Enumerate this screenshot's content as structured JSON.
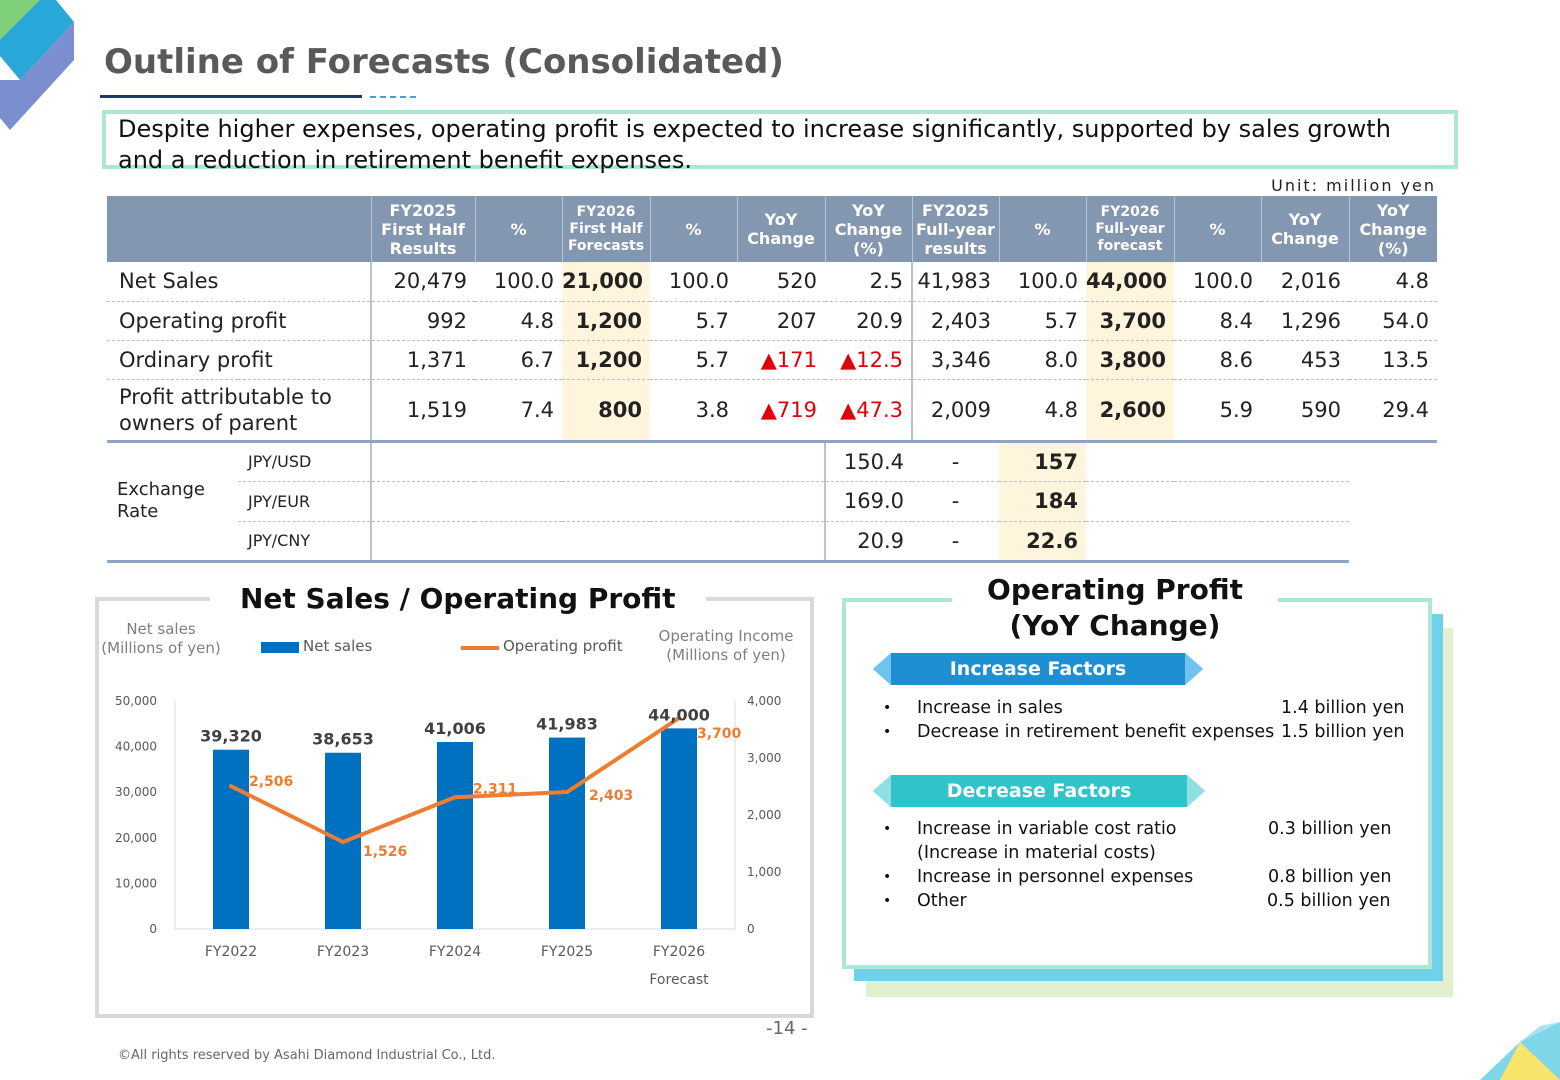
{
  "title": "Outline of Forecasts (Consolidated)",
  "summary": "Despite higher expenses, operating profit is expected to increase significantly, supported by sales growth and a reduction in retirement benefit expenses.",
  "unit": "Unit: million yen",
  "table": {
    "headers": [
      "FY2025 First Half Results",
      "%",
      "FY2026 First Half Forecasts",
      "%",
      "YoY Change",
      "YoY Change (%)",
      "FY2025 Full-year results",
      "%",
      "FY2026 Full-year forecast",
      "%",
      "YoY Change",
      "YoY Change (%)"
    ],
    "header_lines": [
      [
        "FY2025",
        "First Half",
        "Results"
      ],
      [
        "%"
      ],
      [
        "FY2026",
        "First Half",
        "Forecasts"
      ],
      [
        "%"
      ],
      [
        "YoY",
        "Change"
      ],
      [
        "YoY",
        "Change",
        "(%)"
      ],
      [
        "FY2025",
        "Full-year",
        "results"
      ],
      [
        "%"
      ],
      [
        "FY2026",
        "Full-year",
        "forecast"
      ],
      [
        "%"
      ],
      [
        "YoY",
        "Change"
      ],
      [
        "YoY",
        "Change",
        "(%)"
      ]
    ],
    "rows": [
      {
        "label": "Net Sales",
        "cells": [
          "20,479",
          "100.0",
          "21,000",
          "100.0",
          "520",
          "2.5",
          "41,983",
          "100.0",
          "44,000",
          "100.0",
          "2,016",
          "4.8"
        ]
      },
      {
        "label": "Operating profit",
        "cells": [
          "992",
          "4.8",
          "1,200",
          "5.7",
          "207",
          "20.9",
          "2,403",
          "5.7",
          "3,700",
          "8.4",
          "1,296",
          "54.0"
        ]
      },
      {
        "label": "Ordinary profit",
        "cells": [
          "1,371",
          "6.7",
          "1,200",
          "5.7",
          "▲171",
          "▲12.5",
          "3,346",
          "8.0",
          "3,800",
          "8.6",
          "453",
          "13.5"
        ]
      },
      {
        "label_lines": [
          "Profit attributable to",
          "owners of parent"
        ],
        "cells": [
          "1,519",
          "7.4",
          "800",
          "3.8",
          "▲719",
          "▲47.3",
          "2,009",
          "4.8",
          "2,600",
          "5.9",
          "590",
          "29.4"
        ]
      }
    ],
    "exchange": {
      "label_lines": [
        "Exchange",
        "Rate"
      ],
      "rows": [
        {
          "pair": "JPY/USD",
          "fy2025": "150.4",
          "pct": "-",
          "fy2026": "157"
        },
        {
          "pair": "JPY/EUR",
          "fy2025": "169.0",
          "pct": "-",
          "fy2026": "184"
        },
        {
          "pair": "JPY/CNY",
          "fy2025": "20.9",
          "pct": "-",
          "fy2026": "22.6"
        }
      ]
    }
  },
  "chart_data": {
    "type": "bar",
    "title": "Net Sales / Operating Profit",
    "categories": [
      "FY2022",
      "FY2023",
      "FY2024",
      "FY2025",
      "FY2026"
    ],
    "category_sublabels": [
      "",
      "",
      "",
      "",
      "Forecast"
    ],
    "series": [
      {
        "name": "Net sales",
        "type": "bar",
        "axis": "left",
        "color": "#0070c0",
        "values": [
          39320,
          38653,
          41006,
          41983,
          44000
        ],
        "labels": [
          "39,320",
          "38,653",
          "41,006",
          "41,983",
          "44,000"
        ]
      },
      {
        "name": "Operating profit",
        "type": "line",
        "axis": "right",
        "color": "#ed7d31",
        "values": [
          2506,
          1526,
          2311,
          2403,
          3700
        ],
        "labels": [
          "2,506",
          "1,526",
          "2,311",
          "2,403",
          "3,700"
        ]
      }
    ],
    "ylabel_left_lines": [
      "Net sales",
      "(Millions of yen)"
    ],
    "ylabel_right_lines": [
      "Operating Income",
      "(Millions of yen)"
    ],
    "ylim_left": [
      0,
      50000
    ],
    "ylim_right": [
      0,
      4000
    ],
    "yticks_left": [
      "0",
      "10,000",
      "20,000",
      "30,000",
      "40,000",
      "50,000"
    ],
    "yticks_right": [
      "0",
      "1,000",
      "2,000",
      "3,000",
      "4,000"
    ],
    "legend": "top",
    "grid": false
  },
  "op_profit": {
    "title_lines": [
      "Operating Profit",
      "(YoY Change)"
    ],
    "increase_label": "Increase Factors",
    "increase": [
      {
        "text": "Increase in sales",
        "amount": "1.4 billion yen"
      },
      {
        "text": "Decrease in retirement benefit expenses",
        "amount": "1.5 billion yen"
      }
    ],
    "decrease_label": "Decrease Factors",
    "decrease": [
      {
        "text": "Increase in variable cost ratio",
        "note": "(Increase in material costs)",
        "amount": "0.3 billion yen"
      },
      {
        "text": "Increase in personnel expenses",
        "amount": "0.8 billion yen"
      },
      {
        "text": "Other",
        "amount": "0.5 billion yen"
      }
    ],
    "colors": {
      "increase": "#1f8fd4",
      "decrease": "#2ec4c9"
    }
  },
  "page_number": "-14 -",
  "copyright": "©All rights reserved by Asahi Diamond Industrial Co., Ltd."
}
